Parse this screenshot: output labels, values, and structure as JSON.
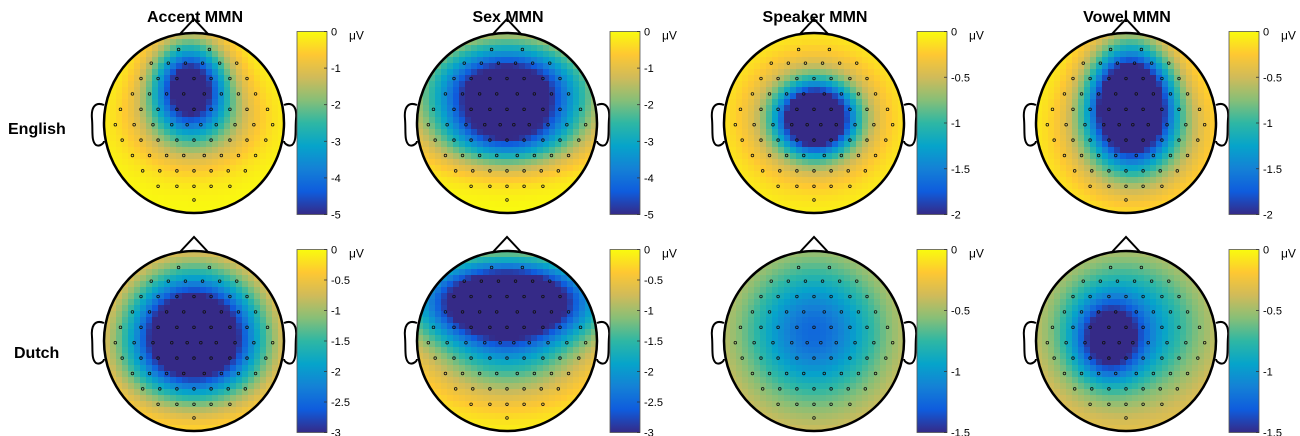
{
  "chart_data": {
    "type": "heatmap",
    "columns": [
      "Accent MMN",
      "Sex MMN",
      "Speaker MMN",
      "Vowel MMN"
    ],
    "rows": [
      "English",
      "Dutch"
    ],
    "colormap": [
      "#352a87",
      "#0f5cdd",
      "#1481d6",
      "#06a4ca",
      "#2eb7a4",
      "#87bf77",
      "#d1bb59",
      "#fec832",
      "#f9fb0e"
    ],
    "colorbar_unit": "μV",
    "panels": [
      {
        "row": "English",
        "column": "Accent MMN",
        "clim": [
          -5,
          0
        ],
        "ticks": [
          0,
          -1,
          -2,
          -3,
          -4,
          -5
        ],
        "blobs": [
          {
            "x": -0.05,
            "y": -0.45,
            "sx": 0.28,
            "sy": 0.33,
            "amp": -5.0
          },
          {
            "x": 0.0,
            "y": -0.05,
            "sx": 0.45,
            "sy": 0.35,
            "amp": -2.2
          }
        ],
        "baseline": 0
      },
      {
        "row": "English",
        "column": "Sex MMN",
        "clim": [
          -5,
          0
        ],
        "ticks": [
          0,
          -1,
          -2,
          -3,
          -4,
          -5
        ],
        "blobs": [
          {
            "x": 0.0,
            "y": -0.35,
            "sx": 0.6,
            "sy": 0.38,
            "amp": -6.5
          },
          {
            "x": 0.0,
            "y": 0.15,
            "sx": 0.5,
            "sy": 0.25,
            "amp": -2.5
          }
        ],
        "baseline": 0
      },
      {
        "row": "English",
        "column": "Speaker MMN",
        "clim": [
          -2,
          0
        ],
        "ticks": [
          0,
          -0.5,
          -1,
          -1.5,
          -2
        ],
        "blobs": [
          {
            "x": 0.02,
            "y": -0.05,
            "sx": 0.27,
            "sy": 0.25,
            "amp": -2.6
          },
          {
            "x": 0.0,
            "y": -0.05,
            "sx": 0.5,
            "sy": 0.45,
            "amp": -0.9
          }
        ],
        "baseline": 0
      },
      {
        "row": "English",
        "column": "Vowel MMN",
        "clim": [
          -2,
          0
        ],
        "ticks": [
          0,
          -0.5,
          -1,
          -1.5,
          -2
        ],
        "blobs": [
          {
            "x": 0.05,
            "y": -0.25,
            "sx": 0.3,
            "sy": 0.42,
            "amp": -2.8
          },
          {
            "x": 0.1,
            "y": 0.1,
            "sx": 0.5,
            "sy": 0.45,
            "amp": -1.0
          }
        ],
        "baseline": 0
      },
      {
        "row": "Dutch",
        "column": "Accent MMN",
        "clim": [
          -3,
          0
        ],
        "ticks": [
          0,
          -0.5,
          -1,
          -1.5,
          -2,
          -2.5,
          -3
        ],
        "blobs": [
          {
            "x": 0.0,
            "y": -0.15,
            "sx": 0.5,
            "sy": 0.45,
            "amp": -4.0
          },
          {
            "x": 0.0,
            "y": 0.25,
            "sx": 0.55,
            "sy": 0.35,
            "amp": -1.2
          }
        ],
        "baseline": 0
      },
      {
        "row": "Dutch",
        "column": "Sex MMN",
        "clim": [
          -3,
          0
        ],
        "ticks": [
          0,
          -0.5,
          -1,
          -1.5,
          -2,
          -2.5,
          -3
        ],
        "blobs": [
          {
            "x": 0.0,
            "y": -0.45,
            "sx": 0.7,
            "sy": 0.33,
            "amp": -4.5
          },
          {
            "x": 0.0,
            "y": 0.2,
            "sx": 0.6,
            "sy": 0.35,
            "amp": -1.3
          }
        ],
        "baseline": 0
      },
      {
        "row": "Dutch",
        "column": "Speaker MMN",
        "clim": [
          -1.5,
          0
        ],
        "ticks": [
          0,
          -0.5,
          -1,
          -1.5
        ],
        "blobs": [
          {
            "x": 0.0,
            "y": -0.1,
            "sx": 0.55,
            "sy": 0.55,
            "amp": -1.0
          }
        ],
        "baseline": -0.25
      },
      {
        "row": "Dutch",
        "column": "Vowel MMN",
        "clim": [
          -1.5,
          0
        ],
        "ticks": [
          0,
          -0.5,
          -1,
          -1.5
        ],
        "blobs": [
          {
            "x": -0.2,
            "y": 0.0,
            "sx": 0.25,
            "sy": 0.3,
            "amp": -0.9
          },
          {
            "x": 0.0,
            "y": -0.15,
            "sx": 0.6,
            "sy": 0.55,
            "amp": -0.9
          }
        ],
        "baseline": -0.2
      }
    ]
  }
}
